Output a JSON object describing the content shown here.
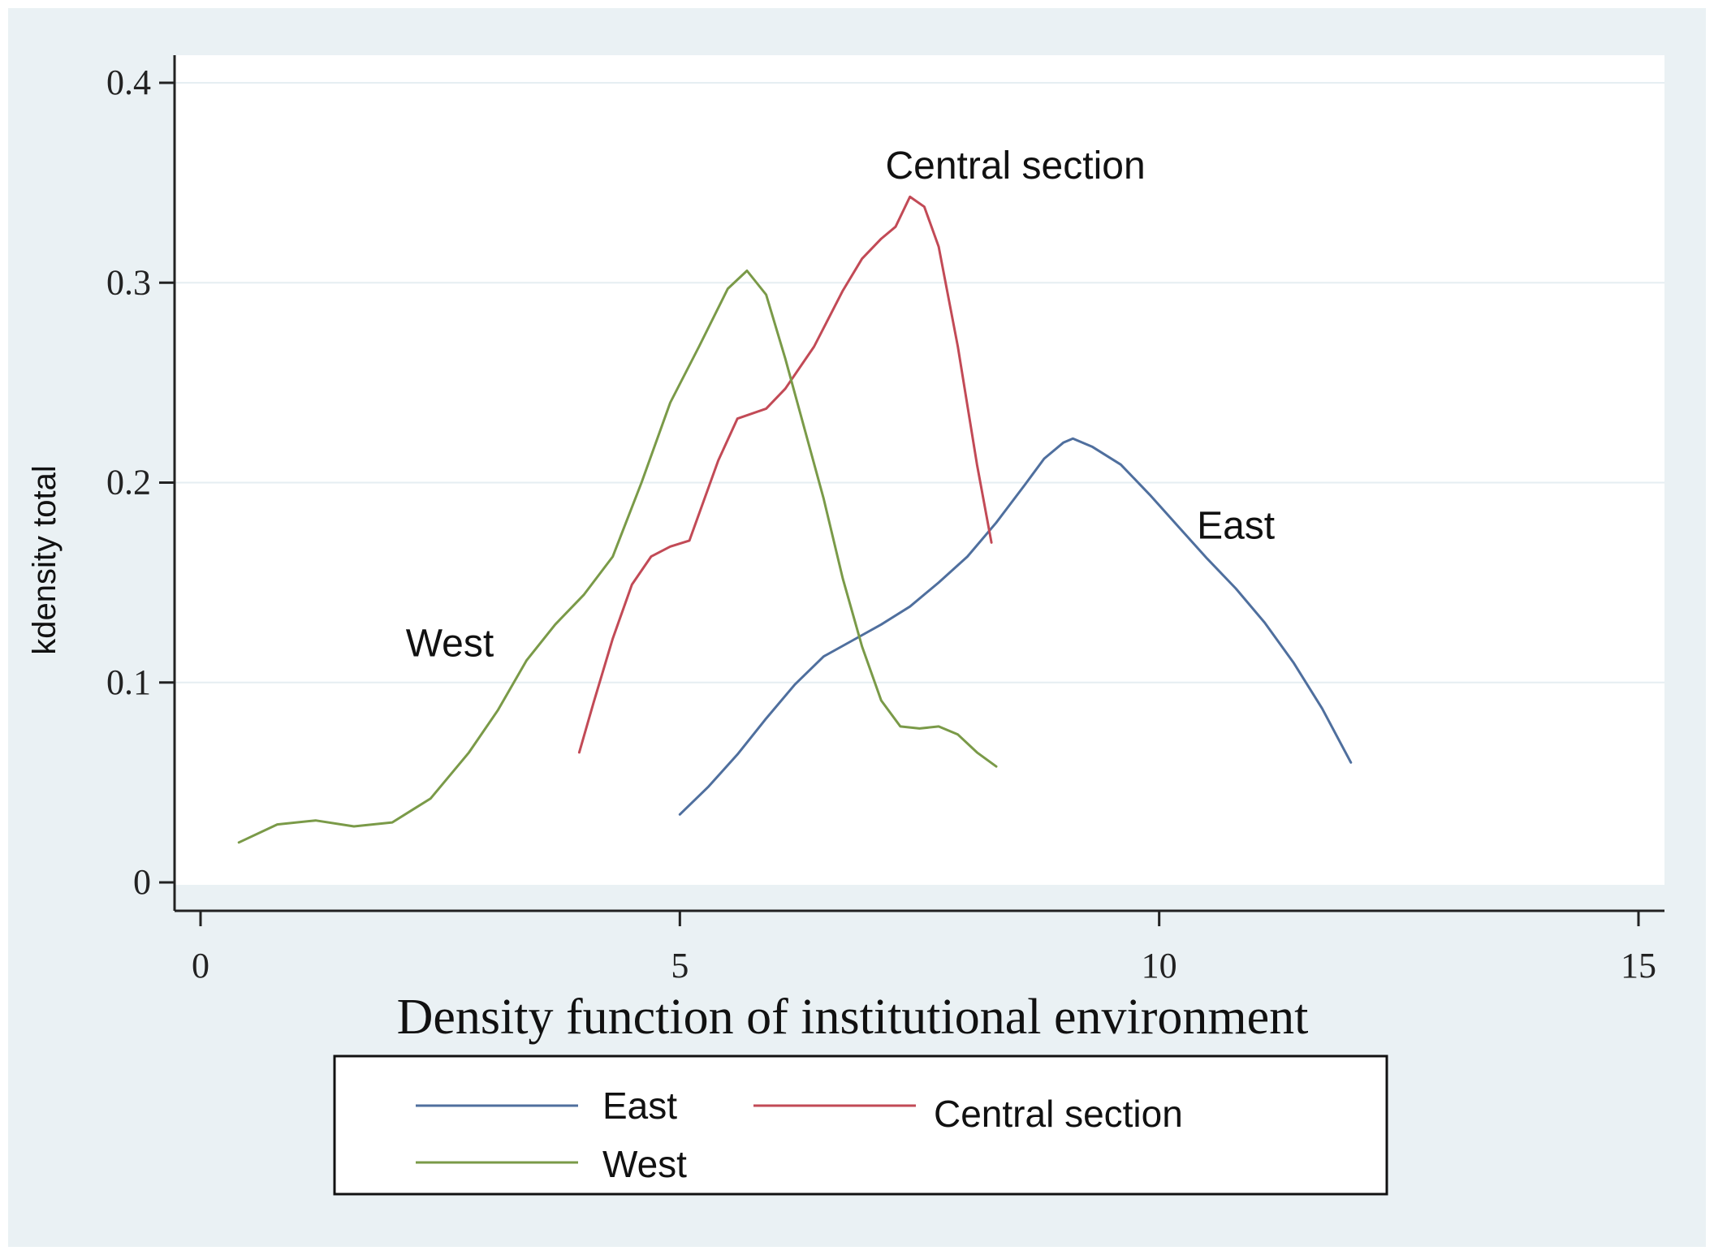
{
  "chart_data": {
    "type": "line",
    "title": "",
    "xlabel": "Density function of institutional environment",
    "ylabel": "kdensity total",
    "xlim": [
      0,
      15
    ],
    "ylim": [
      0,
      0.4
    ],
    "xticks": [
      "0",
      "5",
      "10",
      "15"
    ],
    "yticks": [
      "0",
      "0.1",
      "0.2",
      "0.3",
      "0.4"
    ],
    "grid": true,
    "legend_position": "bottom",
    "series": [
      {
        "name": "East",
        "color": "#4f6f9e",
        "points": [
          [
            5.0,
            0.034
          ],
          [
            5.3,
            0.048
          ],
          [
            5.6,
            0.064
          ],
          [
            5.9,
            0.082
          ],
          [
            6.2,
            0.099
          ],
          [
            6.5,
            0.113
          ],
          [
            6.8,
            0.121
          ],
          [
            7.1,
            0.129
          ],
          [
            7.4,
            0.138
          ],
          [
            7.7,
            0.15
          ],
          [
            8.0,
            0.163
          ],
          [
            8.3,
            0.18
          ],
          [
            8.6,
            0.199
          ],
          [
            8.8,
            0.212
          ],
          [
            9.0,
            0.22
          ],
          [
            9.1,
            0.222
          ],
          [
            9.3,
            0.218
          ],
          [
            9.6,
            0.209
          ],
          [
            9.9,
            0.194
          ],
          [
            10.2,
            0.178
          ],
          [
            10.5,
            0.162
          ],
          [
            10.8,
            0.147
          ],
          [
            11.1,
            0.13
          ],
          [
            11.4,
            0.11
          ],
          [
            11.7,
            0.087
          ],
          [
            12.0,
            0.06
          ]
        ]
      },
      {
        "name": "Central section",
        "color": "#c24a56",
        "points": [
          [
            3.95,
            0.065
          ],
          [
            4.1,
            0.09
          ],
          [
            4.3,
            0.122
          ],
          [
            4.5,
            0.149
          ],
          [
            4.7,
            0.163
          ],
          [
            4.9,
            0.168
          ],
          [
            5.1,
            0.171
          ],
          [
            5.25,
            0.191
          ],
          [
            5.4,
            0.211
          ],
          [
            5.6,
            0.232
          ],
          [
            5.9,
            0.237
          ],
          [
            6.1,
            0.247
          ],
          [
            6.4,
            0.268
          ],
          [
            6.7,
            0.296
          ],
          [
            6.9,
            0.312
          ],
          [
            7.1,
            0.322
          ],
          [
            7.25,
            0.328
          ],
          [
            7.4,
            0.343
          ],
          [
            7.55,
            0.338
          ],
          [
            7.7,
            0.318
          ],
          [
            7.9,
            0.268
          ],
          [
            8.1,
            0.209
          ],
          [
            8.25,
            0.17
          ]
        ]
      },
      {
        "name": "West",
        "color": "#7a9a48",
        "points": [
          [
            0.4,
            0.02
          ],
          [
            0.8,
            0.029
          ],
          [
            1.2,
            0.031
          ],
          [
            1.6,
            0.028
          ],
          [
            2.0,
            0.03
          ],
          [
            2.4,
            0.042
          ],
          [
            2.8,
            0.065
          ],
          [
            3.1,
            0.086
          ],
          [
            3.4,
            0.111
          ],
          [
            3.7,
            0.129
          ],
          [
            4.0,
            0.144
          ],
          [
            4.3,
            0.163
          ],
          [
            4.6,
            0.2
          ],
          [
            4.9,
            0.24
          ],
          [
            5.2,
            0.268
          ],
          [
            5.5,
            0.297
          ],
          [
            5.7,
            0.306
          ],
          [
            5.9,
            0.294
          ],
          [
            6.1,
            0.262
          ],
          [
            6.3,
            0.227
          ],
          [
            6.5,
            0.192
          ],
          [
            6.7,
            0.152
          ],
          [
            6.9,
            0.118
          ],
          [
            7.1,
            0.091
          ],
          [
            7.3,
            0.078
          ],
          [
            7.5,
            0.077
          ],
          [
            7.7,
            0.078
          ],
          [
            7.9,
            0.074
          ],
          [
            8.1,
            0.065
          ],
          [
            8.3,
            0.058
          ]
        ]
      }
    ],
    "annotations": [
      {
        "text": "Central section",
        "x": 8.5,
        "y": 0.352
      },
      {
        "text": "East",
        "x": 10.8,
        "y": 0.172
      },
      {
        "text": "West",
        "x": 2.6,
        "y": 0.113
      }
    ]
  }
}
